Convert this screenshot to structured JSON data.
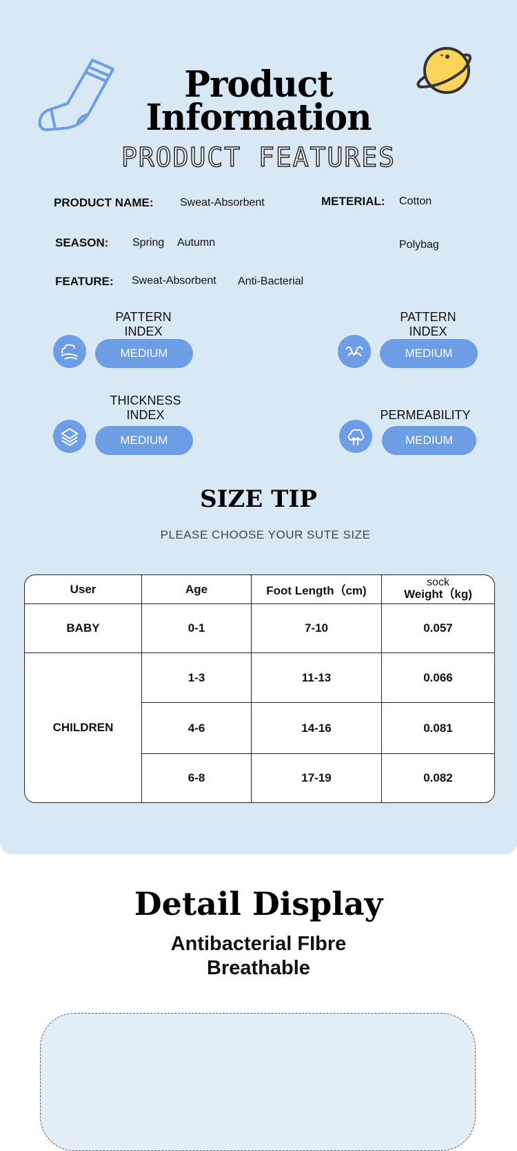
{
  "header": {
    "title_line1": "Product",
    "title_line2": "Information",
    "subtitle": "PRODUCT FEATURES",
    "icons": [
      "sock-icon",
      "planet-icon"
    ]
  },
  "specs": {
    "product_name_label": "PRODUCT NAME:",
    "product_name": "Sweat-Absorbent",
    "material_label": "METERIAL:",
    "material": "Cotton",
    "packing": "Polybag",
    "season_label": "SEASON:",
    "season1": "Spring",
    "season2": "Autumn",
    "feature_label": "FEATURE:",
    "feature1": "Sweat-Absorbent",
    "feature2": "Anti-Bacterial"
  },
  "indices": [
    {
      "label1": "PATTERN",
      "label2": "INDEX",
      "value": "MEDIUM",
      "icon": "cloud-wind-icon"
    },
    {
      "label1": "PATTERN",
      "label2": "INDEX",
      "value": "MEDIUM",
      "icon": "wave-icon"
    },
    {
      "label1": "THICKNESS",
      "label2": "INDEX",
      "value": "MEDIUM",
      "icon": "layers-icon"
    },
    {
      "label1": "PERMEABILITY",
      "label2": "",
      "value": "MEDIUM",
      "icon": "breathable-cloud-icon"
    }
  ],
  "size_tip": {
    "title": "SIZE TIP",
    "subtitle": "PLEASE CHOOSE YOUR SUTE SIZE"
  },
  "table": {
    "headers": [
      "User",
      "Age",
      "Foot Length（cm)",
      "sock",
      "Weight（kg)"
    ],
    "baby": {
      "user": "BABY",
      "age": "0-1",
      "foot": "7-10",
      "weight": "0.057"
    },
    "children_label": "CHILDREN",
    "children": [
      {
        "age": "1-3",
        "foot": "11-13",
        "weight": "0.066"
      },
      {
        "age": "4-6",
        "foot": "14-16",
        "weight": "0.081"
      },
      {
        "age": "6-8",
        "foot": "17-19",
        "weight": "0.082"
      }
    ]
  },
  "detail": {
    "title": "Detail Display",
    "line1": "Antibacterial FIbre",
    "line2": "Breathable"
  },
  "colors": {
    "panel": "#d8e8f4",
    "accent": "#6d9de4"
  }
}
